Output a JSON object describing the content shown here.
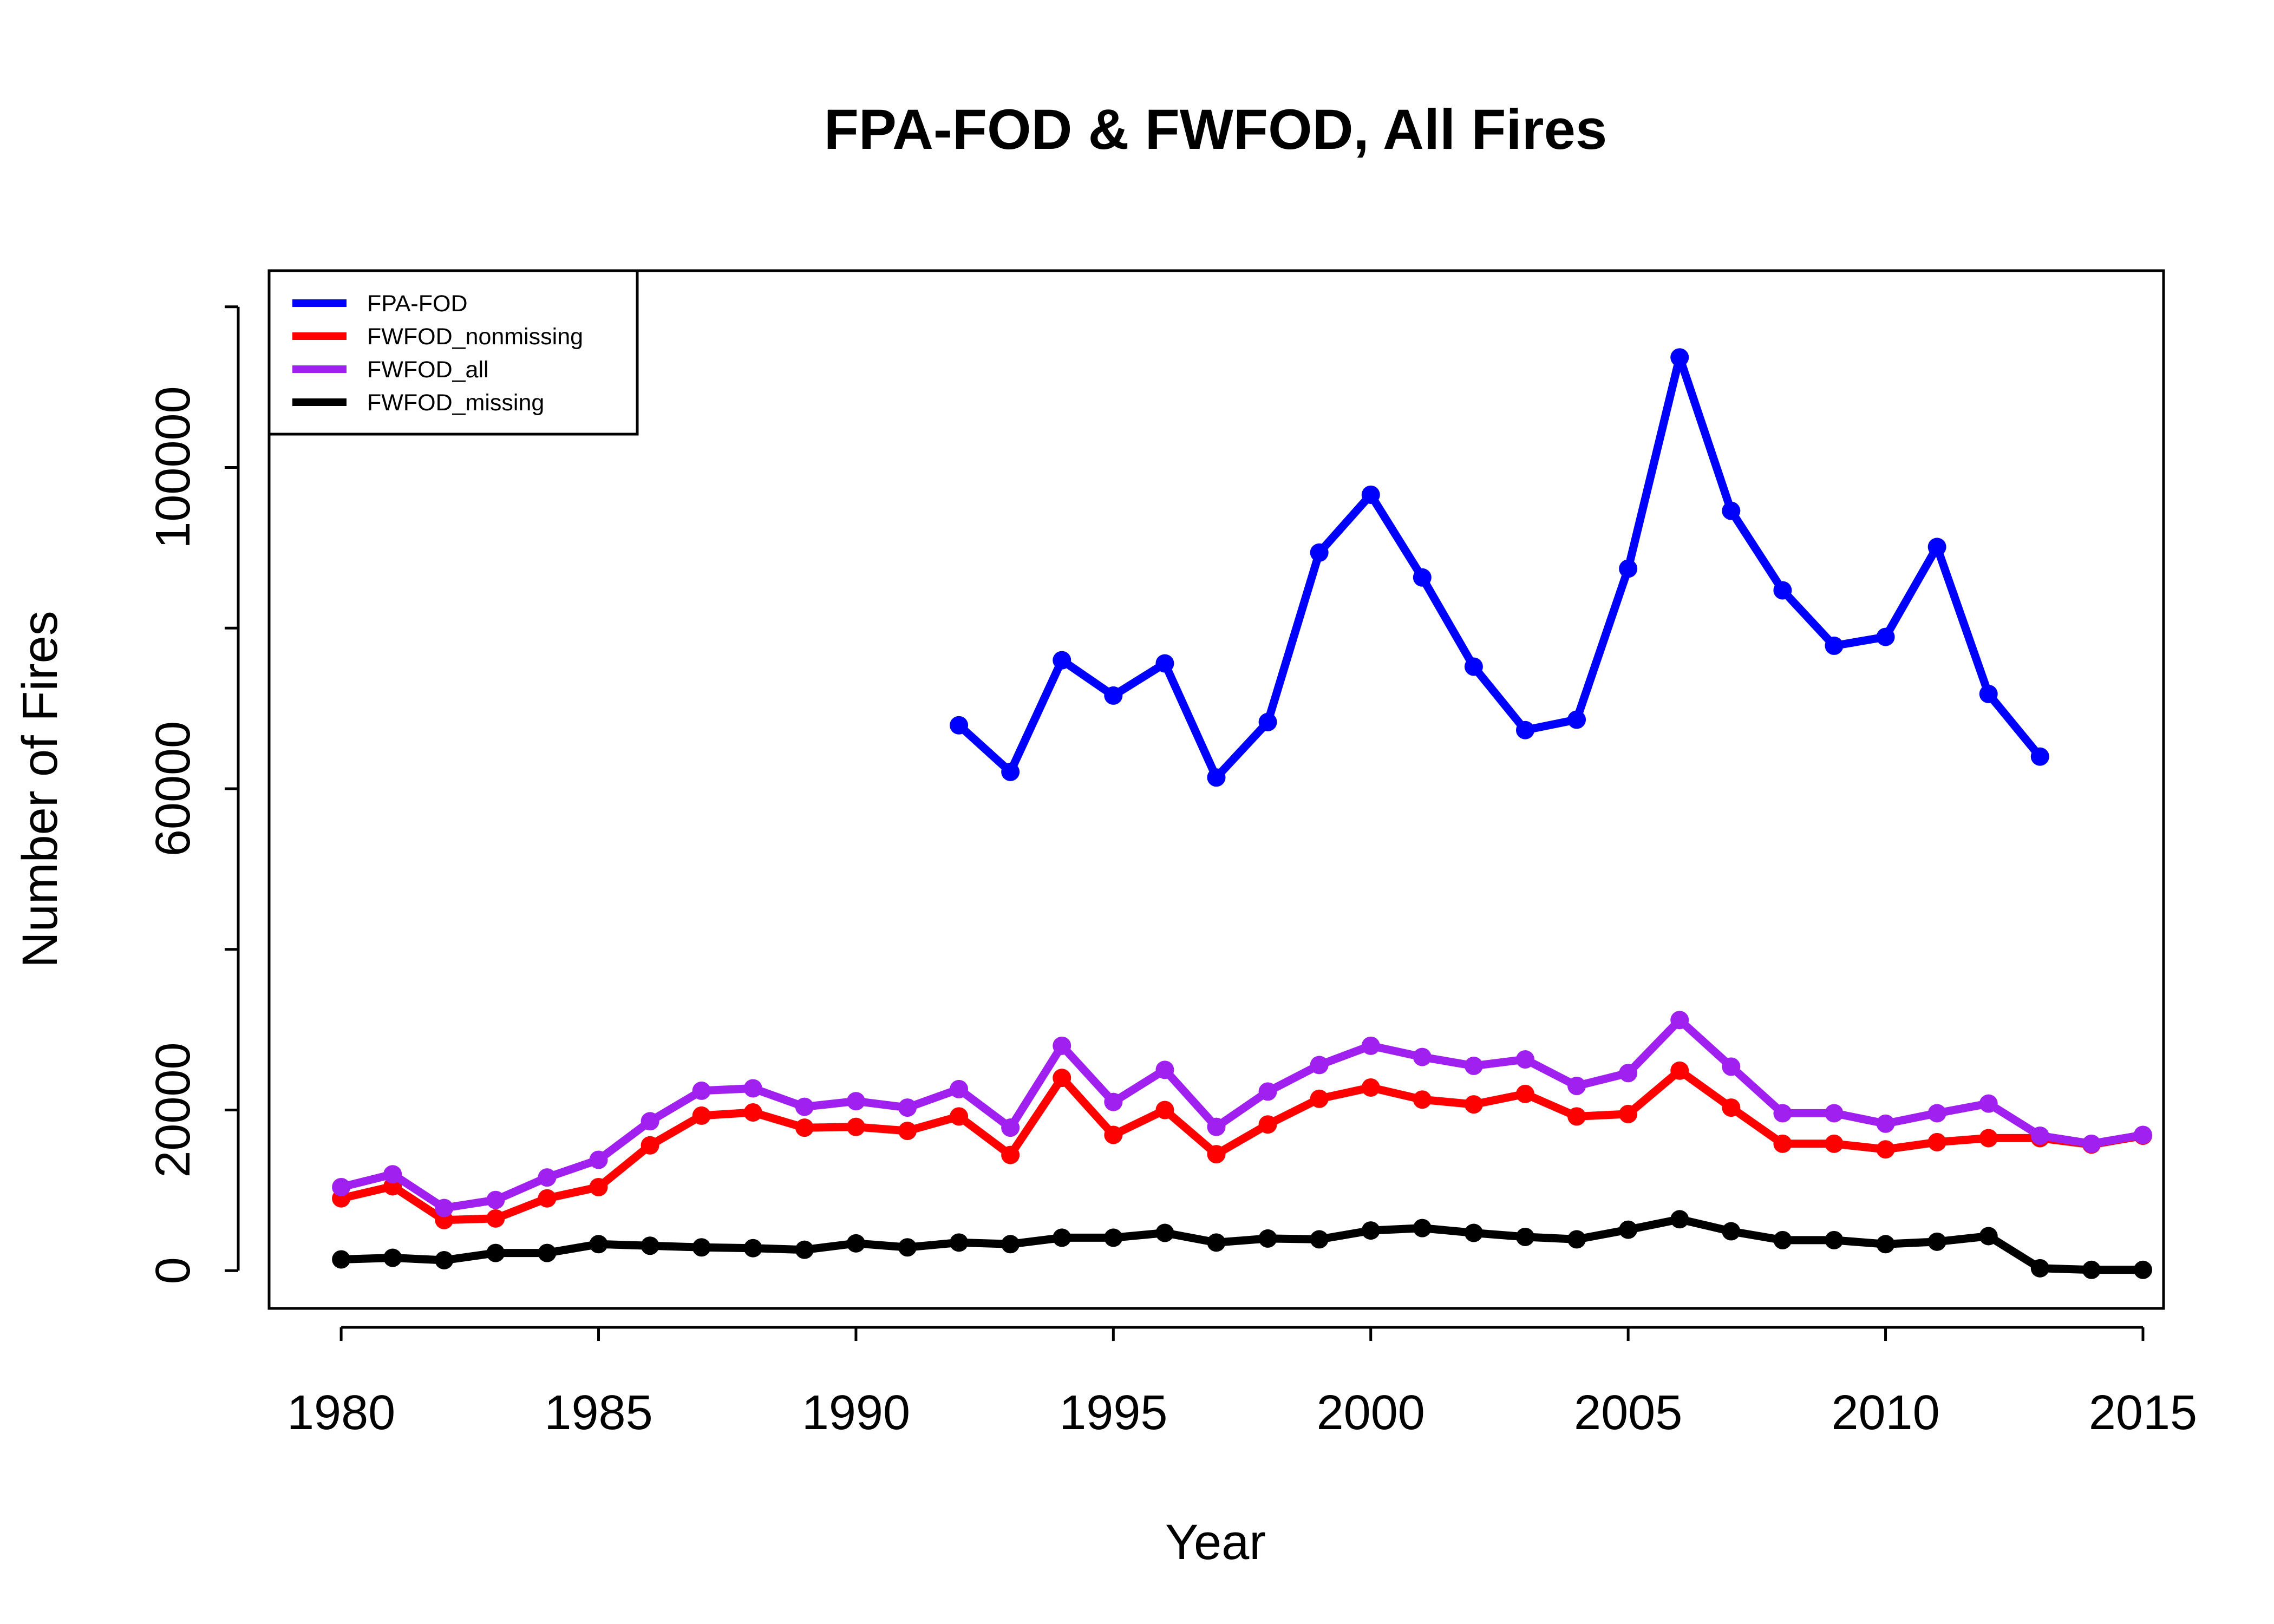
{
  "chart_data": {
    "type": "line",
    "title": "FPA-FOD & FWFOD, All Fires",
    "xlabel": "Year",
    "ylabel": "Number of Fires",
    "xlim": [
      1978.6,
      2015.4
    ],
    "ylim": [
      -4700,
      124500
    ],
    "x_ticks": [
      1980,
      1985,
      1990,
      1995,
      2000,
      2005,
      2010,
      2015
    ],
    "y_ticks": [
      0,
      20000,
      40000,
      60000,
      80000,
      100000,
      120000
    ],
    "y_tick_labels": [
      "0",
      "20000",
      "",
      "60000",
      "",
      "100000",
      ""
    ],
    "grid": false,
    "legend_position": "top-left",
    "series": [
      {
        "name": "FPA-FOD",
        "color": "#0000ff",
        "x": [
          1992,
          1993,
          1994,
          1995,
          1996,
          1997,
          1998,
          1999,
          2000,
          2001,
          2002,
          2003,
          2004,
          2005,
          2006,
          2007,
          2008,
          2009,
          2010,
          2011,
          2012,
          2013
        ],
        "y": [
          67900,
          62100,
          76000,
          71600,
          75600,
          61400,
          68300,
          89400,
          96600,
          86300,
          75200,
          67300,
          68600,
          87400,
          113700,
          94600,
          84700,
          77800,
          78900,
          90100,
          71800,
          64000
        ]
      },
      {
        "name": "FWFOD_nonmissing",
        "color": "#ff0000",
        "x": [
          1980,
          1981,
          1982,
          1983,
          1984,
          1985,
          1986,
          1987,
          1988,
          1989,
          1990,
          1991,
          1992,
          1993,
          1994,
          1995,
          1996,
          1997,
          1998,
          1999,
          2000,
          2001,
          2002,
          2003,
          2004,
          2005,
          2006,
          2007,
          2008,
          2009,
          2010,
          2011,
          2012,
          2013,
          2014,
          2015
        ],
        "y": [
          9000,
          10500,
          6300,
          6500,
          9000,
          10400,
          15600,
          19300,
          19700,
          17800,
          17900,
          17400,
          19200,
          14400,
          24000,
          16900,
          20000,
          14500,
          18200,
          21400,
          22800,
          21300,
          20700,
          22000,
          19200,
          19500,
          24900,
          20300,
          15800,
          15800,
          15100,
          16000,
          16500,
          16500,
          15700,
          16800
        ]
      },
      {
        "name": "FWFOD_all",
        "color": "#a020f0",
        "x": [
          1980,
          1981,
          1982,
          1983,
          1984,
          1985,
          1986,
          1987,
          1988,
          1989,
          1990,
          1991,
          1992,
          1993,
          1994,
          1995,
          1996,
          1997,
          1998,
          1999,
          2000,
          2001,
          2002,
          2003,
          2004,
          2005,
          2006,
          2007,
          2008,
          2009,
          2010,
          2011,
          2012,
          2013,
          2014,
          2015
        ],
        "y": [
          10400,
          12000,
          7800,
          8800,
          11600,
          13800,
          18600,
          22400,
          22700,
          20400,
          21100,
          20300,
          22600,
          17800,
          28000,
          21000,
          25000,
          17900,
          22300,
          25600,
          28000,
          26600,
          25500,
          26300,
          23000,
          24600,
          31200,
          25400,
          19600,
          19600,
          18300,
          19600,
          20800,
          16800,
          15800,
          16900
        ]
      },
      {
        "name": "FWFOD_missing",
        "color": "#000000",
        "x": [
          1980,
          1981,
          1982,
          1983,
          1984,
          1985,
          1986,
          1987,
          1988,
          1989,
          1990,
          1991,
          1992,
          1993,
          1994,
          1995,
          1996,
          1997,
          1998,
          1999,
          2000,
          2001,
          2002,
          2003,
          2004,
          2005,
          2006,
          2007,
          2008,
          2009,
          2010,
          2011,
          2012,
          2013,
          2014,
          2015
        ],
        "y": [
          1400,
          1600,
          1300,
          2200,
          2200,
          3300,
          3100,
          2900,
          2800,
          2600,
          3400,
          2900,
          3500,
          3300,
          4100,
          4100,
          4700,
          3500,
          4000,
          3900,
          5000,
          5300,
          4700,
          4200,
          3900,
          5100,
          6400,
          4900,
          3800,
          3800,
          3300,
          3600,
          4300,
          300,
          100,
          100
        ]
      }
    ]
  }
}
